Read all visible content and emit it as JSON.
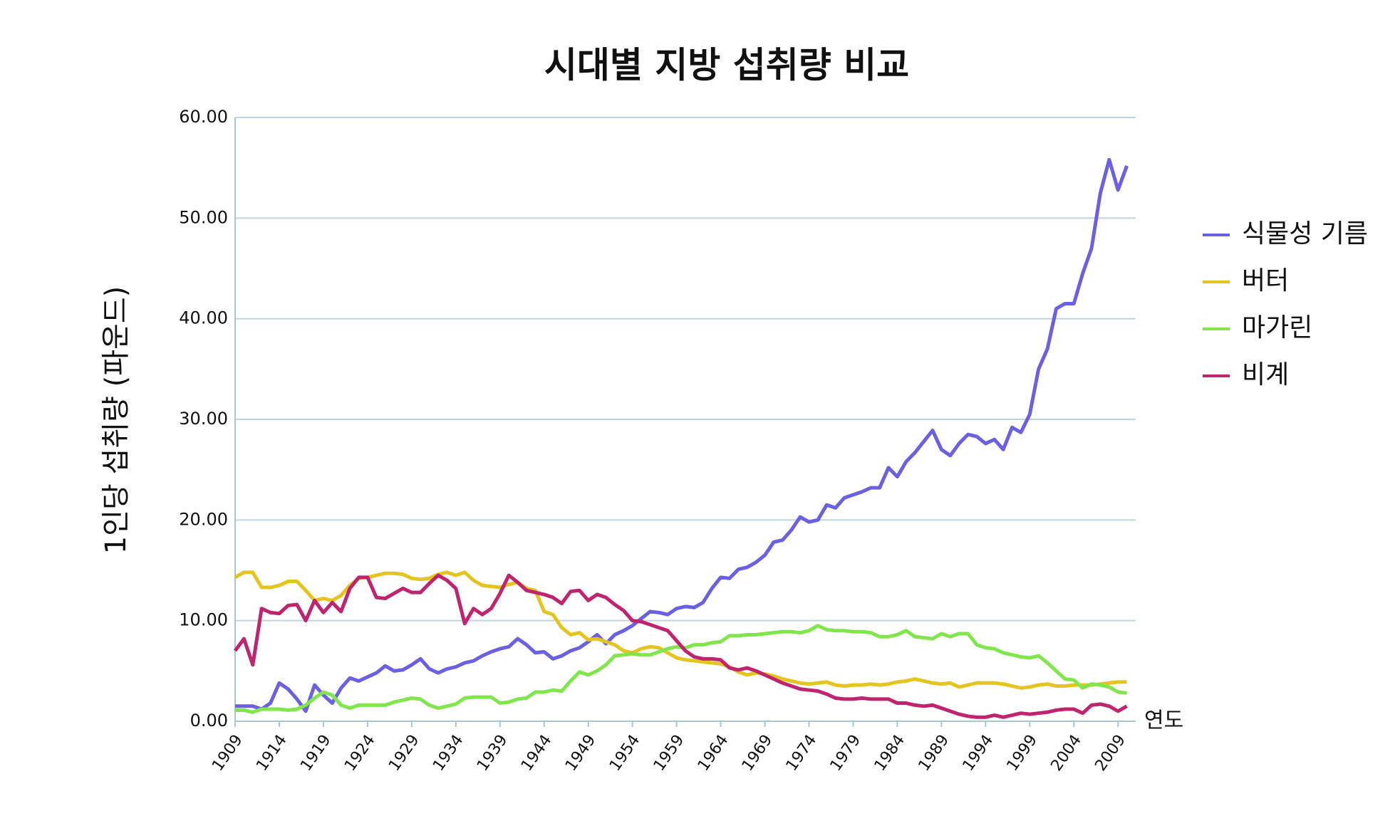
{
  "chart_data": {
    "type": "line",
    "title": "시대별 지방 섭취량 비교",
    "x_label": "연도",
    "y_label": "1인당 섭취량 (파운드)",
    "x": [
      1909,
      1910,
      1911,
      1912,
      1913,
      1914,
      1915,
      1916,
      1917,
      1918,
      1919,
      1920,
      1921,
      1922,
      1923,
      1924,
      1925,
      1926,
      1927,
      1928,
      1929,
      1930,
      1931,
      1932,
      1933,
      1934,
      1935,
      1936,
      1937,
      1938,
      1939,
      1940,
      1941,
      1942,
      1943,
      1944,
      1945,
      1946,
      1947,
      1948,
      1949,
      1950,
      1951,
      1952,
      1953,
      1954,
      1955,
      1956,
      1957,
      1958,
      1959,
      1960,
      1961,
      1962,
      1963,
      1964,
      1965,
      1966,
      1967,
      1968,
      1969,
      1970,
      1971,
      1972,
      1973,
      1974,
      1975,
      1976,
      1977,
      1978,
      1979,
      1980,
      1981,
      1982,
      1983,
      1984,
      1985,
      1986,
      1987,
      1988,
      1989,
      1990,
      1991,
      1992,
      1993,
      1994,
      1995,
      1996,
      1997,
      1998,
      1999,
      2000,
      2001,
      2002,
      2003,
      2004,
      2005,
      2006,
      2007,
      2008,
      2009,
      2010
    ],
    "series": [
      {
        "name": "식물성 기름",
        "color": "#6b5fe3",
        "values": [
          1.5,
          1.5,
          1.5,
          1.2,
          1.8,
          3.8,
          3.2,
          2.2,
          1.0,
          3.6,
          2.6,
          1.8,
          3.3,
          4.3,
          4.0,
          4.4,
          4.8,
          5.5,
          5.0,
          5.1,
          5.6,
          6.2,
          5.2,
          4.8,
          5.2,
          5.4,
          5.8,
          6.0,
          6.5,
          6.9,
          7.2,
          7.4,
          8.2,
          7.6,
          6.8,
          6.9,
          6.2,
          6.5,
          7.0,
          7.3,
          7.9,
          8.6,
          7.7,
          8.6,
          9.0,
          9.5,
          10.2,
          10.9,
          10.8,
          10.6,
          11.2,
          11.4,
          11.3,
          11.8,
          13.2,
          14.3,
          14.2,
          15.1,
          15.3,
          15.8,
          16.5,
          17.8,
          18.0,
          19.0,
          20.3,
          19.8,
          20.0,
          21.5,
          21.2,
          22.2,
          22.5,
          22.8,
          23.2,
          23.2,
          25.2,
          24.3,
          25.8,
          26.7,
          27.8,
          28.9,
          27.0,
          26.4,
          27.6,
          28.5,
          28.3,
          27.6,
          28.0,
          27.0,
          29.2,
          28.7,
          30.5,
          35.0,
          37.0,
          41.0,
          41.5,
          41.5,
          44.5,
          47.0,
          52.5,
          55.8,
          52.8,
          55.2
        ]
      },
      {
        "name": "버터",
        "color": "#e4c41e",
        "values": [
          14.3,
          14.8,
          14.8,
          13.3,
          13.3,
          13.5,
          13.9,
          13.9,
          13.0,
          12.0,
          12.2,
          12.0,
          12.5,
          13.5,
          14.2,
          14.3,
          14.5,
          14.7,
          14.7,
          14.6,
          14.2,
          14.1,
          14.2,
          14.6,
          14.8,
          14.5,
          14.8,
          14.0,
          13.5,
          13.4,
          13.3,
          13.6,
          13.8,
          13.2,
          13.0,
          10.9,
          10.6,
          9.3,
          8.6,
          8.8,
          8.1,
          8.2,
          7.9,
          7.6,
          7.0,
          6.8,
          7.2,
          7.4,
          7.3,
          6.8,
          6.3,
          6.1,
          6.0,
          5.9,
          5.8,
          5.7,
          5.4,
          4.9,
          4.6,
          4.8,
          4.7,
          4.5,
          4.2,
          4.0,
          3.8,
          3.7,
          3.8,
          3.9,
          3.6,
          3.5,
          3.6,
          3.6,
          3.7,
          3.6,
          3.7,
          3.9,
          4.0,
          4.2,
          4.0,
          3.8,
          3.7,
          3.8,
          3.4,
          3.6,
          3.8,
          3.8,
          3.8,
          3.7,
          3.5,
          3.3,
          3.4,
          3.6,
          3.7,
          3.5,
          3.5,
          3.6,
          3.6,
          3.6,
          3.7,
          3.8,
          3.9,
          3.9
        ]
      },
      {
        "name": "마가린",
        "color": "#80e64c",
        "values": [
          1.1,
          1.1,
          0.9,
          1.2,
          1.2,
          1.2,
          1.1,
          1.2,
          1.6,
          2.3,
          2.9,
          2.6,
          1.6,
          1.3,
          1.6,
          1.6,
          1.6,
          1.6,
          1.9,
          2.1,
          2.3,
          2.2,
          1.6,
          1.3,
          1.5,
          1.7,
          2.3,
          2.4,
          2.4,
          2.4,
          1.8,
          1.9,
          2.2,
          2.3,
          2.9,
          2.9,
          3.1,
          3.0,
          4.0,
          4.9,
          4.6,
          5.0,
          5.6,
          6.5,
          6.6,
          6.7,
          6.6,
          6.6,
          6.9,
          7.2,
          7.4,
          7.3,
          7.6,
          7.6,
          7.8,
          7.9,
          8.5,
          8.5,
          8.6,
          8.6,
          8.7,
          8.8,
          8.9,
          8.9,
          8.8,
          9.0,
          9.5,
          9.1,
          9.0,
          9.0,
          8.9,
          8.9,
          8.8,
          8.4,
          8.4,
          8.6,
          9.0,
          8.4,
          8.3,
          8.2,
          8.7,
          8.4,
          8.7,
          8.7,
          7.6,
          7.3,
          7.2,
          6.8,
          6.6,
          6.4,
          6.3,
          6.5,
          5.8,
          5.0,
          4.2,
          4.1,
          3.3,
          3.7,
          3.6,
          3.4,
          2.9,
          2.8
        ]
      },
      {
        "name": "비계",
        "color": "#c0246f",
        "values": [
          7.0,
          8.2,
          5.6,
          11.2,
          10.8,
          10.7,
          11.5,
          11.6,
          10.0,
          12.0,
          10.8,
          11.8,
          10.9,
          13.2,
          14.3,
          14.3,
          12.3,
          12.2,
          12.7,
          13.2,
          12.8,
          12.8,
          13.7,
          14.5,
          14.0,
          13.2,
          9.7,
          11.2,
          10.6,
          11.2,
          12.7,
          14.5,
          13.8,
          13.0,
          12.8,
          12.6,
          12.3,
          11.7,
          12.9,
          13.0,
          12.0,
          12.6,
          12.3,
          11.6,
          11.0,
          10.0,
          9.9,
          9.6,
          9.3,
          9.0,
          8.0,
          7.0,
          6.4,
          6.2,
          6.2,
          6.1,
          5.3,
          5.1,
          5.3,
          5.0,
          4.6,
          4.2,
          3.8,
          3.5,
          3.2,
          3.1,
          3.0,
          2.7,
          2.3,
          2.2,
          2.2,
          2.3,
          2.2,
          2.2,
          2.2,
          1.8,
          1.8,
          1.6,
          1.5,
          1.6,
          1.3,
          1.0,
          0.7,
          0.5,
          0.4,
          0.4,
          0.6,
          0.4,
          0.6,
          0.8,
          0.7,
          0.8,
          0.9,
          1.1,
          1.2,
          1.2,
          0.8,
          1.6,
          1.7,
          1.5,
          1.0,
          1.5
        ]
      }
    ],
    "xlim": [
      1909,
      2011
    ],
    "xticks": [
      1909,
      1914,
      1919,
      1924,
      1929,
      1934,
      1939,
      1944,
      1949,
      1954,
      1959,
      1964,
      1969,
      1974,
      1979,
      1984,
      1989,
      1994,
      1999,
      2004,
      2009
    ],
    "ylim": [
      0,
      60
    ],
    "yticks": [
      {
        "value": 0,
        "label": "0.00"
      },
      {
        "value": 10,
        "label": "10.00"
      },
      {
        "value": 20,
        "label": "20.00"
      },
      {
        "value": 30,
        "label": "30.00"
      },
      {
        "value": 40,
        "label": "40.00"
      },
      {
        "value": 50,
        "label": "50.00"
      },
      {
        "value": 60,
        "label": "60.00"
      }
    ],
    "grid": true,
    "legend": "right"
  }
}
